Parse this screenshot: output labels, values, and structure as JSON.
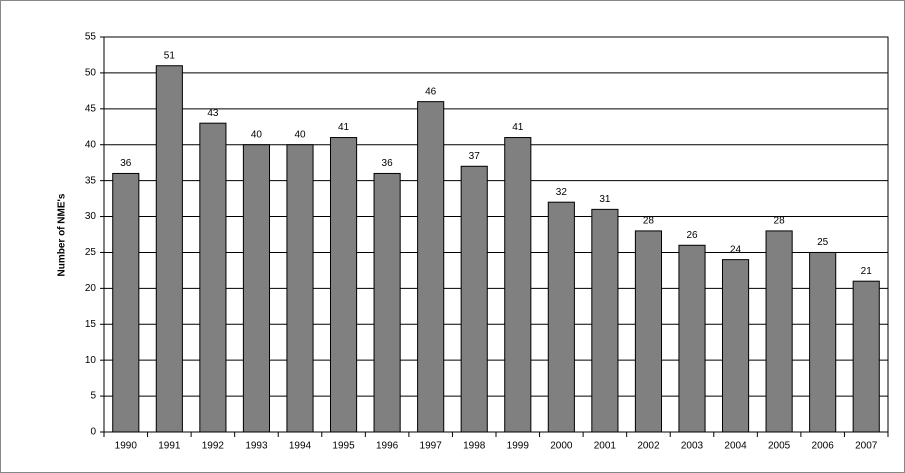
{
  "chart_data": {
    "type": "bar",
    "y_label": "Number of NME's",
    "categories": [
      "1990",
      "1991",
      "1992",
      "1993",
      "1994",
      "1995",
      "1996",
      "1997",
      "1998",
      "1999",
      "2000",
      "2001",
      "2002",
      "2003",
      "2004",
      "2005",
      "2006",
      "2007"
    ],
    "values": [
      36,
      51,
      43,
      40,
      40,
      41,
      36,
      46,
      37,
      41,
      32,
      31,
      28,
      26,
      24,
      28,
      25,
      21
    ],
    "color": "#808080",
    "ylim": [
      0,
      55
    ],
    "yticks": [
      0,
      5,
      10,
      15,
      20,
      25,
      30,
      35,
      40,
      45,
      50,
      55
    ],
    "grid": true
  }
}
